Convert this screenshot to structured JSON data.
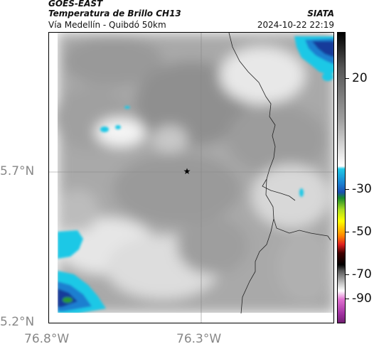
{
  "header": {
    "satellite": "GOES-EAST",
    "product": "Temperatura de Brillo CH13",
    "region": "Vía Medellín - Quibdó 50km",
    "org": "SIATA",
    "timestamp": "2024-10-22 22:19"
  },
  "axes": {
    "lat_ticks": [
      "5.7°N",
      "5.2°N"
    ],
    "lon_ticks": [
      "76.8°W",
      "76.3°W"
    ]
  },
  "colorbar": {
    "labels": [
      "20",
      "-30",
      "-50",
      "-70",
      "-90"
    ]
  },
  "marker": {
    "name": "star-icon"
  }
}
